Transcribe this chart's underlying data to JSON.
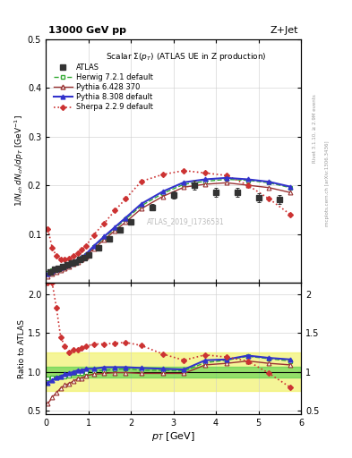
{
  "title_top": "13000 GeV pp",
  "title_right": "Z+Jet",
  "main_title": "Scalar $\\Sigma(p_T)$ (ATLAS UE in Z production)",
  "watermark": "ATLAS_2019_I1736531",
  "right_label1": "Rivet 3.1.10, ≥ 2.9M events",
  "right_label2": "mcplots.cern.ch [arXiv:1306.3436]",
  "xlabel": "$p_T$ [GeV]",
  "ylabel_main": "$1/N_{ch}\\,dN_{ch}/dp_T$ [GeV]",
  "ylabel_ratio": "Ratio to ATLAS",
  "ylim_main": [
    0.0,
    0.5
  ],
  "ylim_ratio": [
    0.45,
    2.15
  ],
  "xlim": [
    0.0,
    6.0
  ],
  "atlas_x": [
    0.1,
    0.2,
    0.3,
    0.4,
    0.5,
    0.6,
    0.7,
    0.8,
    0.9,
    1.0,
    1.25,
    1.5,
    1.75,
    2.0,
    2.5,
    3.0,
    3.5,
    4.0,
    4.5,
    5.0,
    5.5
  ],
  "atlas_y": [
    0.022,
    0.027,
    0.03,
    0.033,
    0.036,
    0.04,
    0.043,
    0.047,
    0.052,
    0.057,
    0.072,
    0.09,
    0.108,
    0.125,
    0.155,
    0.18,
    0.2,
    0.185,
    0.185,
    0.175,
    0.17
  ],
  "atlas_ye": [
    0.003,
    0.002,
    0.002,
    0.002,
    0.002,
    0.002,
    0.002,
    0.002,
    0.003,
    0.003,
    0.004,
    0.005,
    0.005,
    0.006,
    0.007,
    0.008,
    0.009,
    0.009,
    0.009,
    0.009,
    0.009
  ],
  "herwig_x": [
    0.05,
    0.15,
    0.25,
    0.35,
    0.45,
    0.55,
    0.65,
    0.75,
    0.85,
    0.95,
    1.125,
    1.375,
    1.625,
    1.875,
    2.25,
    2.75,
    3.25,
    3.75,
    4.25,
    4.75,
    5.25,
    5.75
  ],
  "herwig_y": [
    0.02,
    0.025,
    0.028,
    0.031,
    0.034,
    0.038,
    0.042,
    0.046,
    0.051,
    0.057,
    0.073,
    0.092,
    0.111,
    0.13,
    0.158,
    0.183,
    0.202,
    0.208,
    0.212,
    0.21,
    0.205,
    0.195
  ],
  "pythia6_x": [
    0.05,
    0.15,
    0.25,
    0.35,
    0.45,
    0.55,
    0.65,
    0.75,
    0.85,
    0.95,
    1.125,
    1.375,
    1.625,
    1.875,
    2.25,
    2.75,
    3.25,
    3.75,
    4.25,
    4.75,
    5.25,
    5.75
  ],
  "pythia6_y": [
    0.013,
    0.018,
    0.022,
    0.026,
    0.03,
    0.034,
    0.038,
    0.043,
    0.048,
    0.054,
    0.07,
    0.088,
    0.107,
    0.124,
    0.152,
    0.177,
    0.196,
    0.202,
    0.205,
    0.2,
    0.195,
    0.185
  ],
  "pythia8_x": [
    0.05,
    0.15,
    0.25,
    0.35,
    0.45,
    0.55,
    0.65,
    0.75,
    0.85,
    0.95,
    1.125,
    1.375,
    1.625,
    1.875,
    2.25,
    2.75,
    3.25,
    3.75,
    4.25,
    4.75,
    5.25,
    5.75
  ],
  "pythia8_y": [
    0.019,
    0.024,
    0.028,
    0.031,
    0.035,
    0.039,
    0.043,
    0.048,
    0.053,
    0.059,
    0.075,
    0.095,
    0.114,
    0.133,
    0.162,
    0.187,
    0.206,
    0.212,
    0.215,
    0.212,
    0.207,
    0.197
  ],
  "sherpa_x": [
    0.05,
    0.15,
    0.25,
    0.35,
    0.45,
    0.55,
    0.65,
    0.75,
    0.85,
    0.95,
    1.125,
    1.375,
    1.625,
    1.875,
    2.25,
    2.75,
    3.25,
    3.75,
    4.25,
    4.75,
    5.25,
    5.75
  ],
  "sherpa_y": [
    0.11,
    0.072,
    0.055,
    0.048,
    0.048,
    0.05,
    0.055,
    0.06,
    0.068,
    0.076,
    0.098,
    0.122,
    0.148,
    0.172,
    0.208,
    0.222,
    0.23,
    0.225,
    0.22,
    0.2,
    0.172,
    0.14
  ],
  "color_atlas": "#333333",
  "color_herwig": "#33aa33",
  "color_pythia6": "#993333",
  "color_pythia8": "#3333cc",
  "color_sherpa": "#cc3333",
  "band_green_lo": 0.93,
  "band_green_hi": 1.07,
  "band_yellow_lo": 0.75,
  "band_yellow_hi": 1.25,
  "ratio_herwig_x": [
    0.05,
    0.15,
    0.25,
    0.35,
    0.45,
    0.55,
    0.65,
    0.75,
    0.85,
    0.95,
    1.125,
    1.375,
    1.625,
    1.875,
    2.25,
    2.75,
    3.25,
    3.75,
    4.25,
    4.75,
    5.25,
    5.75
  ],
  "ratio_herwig": [
    0.91,
    0.93,
    0.93,
    0.94,
    0.94,
    0.95,
    0.98,
    0.98,
    0.98,
    1.0,
    1.01,
    1.02,
    1.03,
    1.04,
    1.02,
    1.02,
    1.01,
    1.12,
    1.15,
    1.2,
    1.17,
    1.14
  ],
  "ratio_pythia6_x": [
    0.05,
    0.15,
    0.25,
    0.35,
    0.45,
    0.55,
    0.65,
    0.75,
    0.85,
    0.95,
    1.125,
    1.375,
    1.625,
    1.875,
    2.25,
    2.75,
    3.25,
    3.75,
    4.25,
    4.75,
    5.25,
    5.75
  ],
  "ratio_pythia6": [
    0.59,
    0.67,
    0.73,
    0.79,
    0.83,
    0.85,
    0.88,
    0.91,
    0.92,
    0.95,
    0.97,
    0.98,
    0.99,
    0.99,
    0.98,
    0.98,
    0.98,
    1.09,
    1.11,
    1.14,
    1.11,
    1.09
  ],
  "ratio_pythia8_x": [
    0.05,
    0.15,
    0.25,
    0.35,
    0.45,
    0.55,
    0.65,
    0.75,
    0.85,
    0.95,
    1.125,
    1.375,
    1.625,
    1.875,
    2.25,
    2.75,
    3.25,
    3.75,
    4.25,
    4.75,
    5.25,
    5.75
  ],
  "ratio_pythia8": [
    0.86,
    0.89,
    0.93,
    0.94,
    0.97,
    0.98,
    1.0,
    1.02,
    1.02,
    1.04,
    1.04,
    1.06,
    1.06,
    1.06,
    1.05,
    1.04,
    1.03,
    1.15,
    1.16,
    1.21,
    1.18,
    1.16
  ],
  "ratio_sherpa_x": [
    0.05,
    0.15,
    0.25,
    0.35,
    0.45,
    0.55,
    0.65,
    0.75,
    0.85,
    0.95,
    1.125,
    1.375,
    1.625,
    1.875,
    2.25,
    2.75,
    3.25,
    3.75,
    4.25,
    4.75,
    5.25,
    5.75
  ],
  "ratio_sherpa": [
    2.15,
    2.15,
    1.83,
    1.45,
    1.33,
    1.25,
    1.28,
    1.28,
    1.31,
    1.33,
    1.36,
    1.36,
    1.37,
    1.38,
    1.34,
    1.23,
    1.15,
    1.22,
    1.19,
    1.14,
    0.98,
    0.8
  ]
}
